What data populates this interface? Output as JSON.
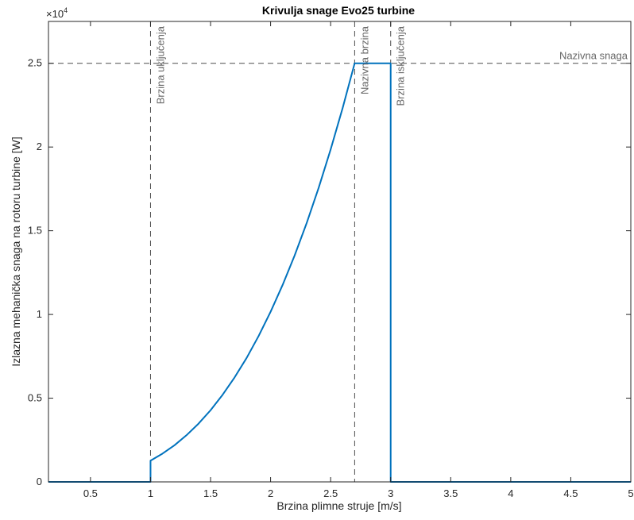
{
  "chart_data": {
    "type": "line",
    "title": "Krivulja snage Evo25 turbine",
    "xlabel": "Brzina plimne struje [m/s]",
    "ylabel": "Izlazna mehanička snaga na rotoru turbine [W]",
    "y_exponent_label": "×10",
    "y_exponent_power": "4",
    "xlim": [
      0.15,
      5
    ],
    "ylim": [
      0,
      27500
    ],
    "x_ticks": [
      0.5,
      1,
      1.5,
      2,
      2.5,
      3,
      3.5,
      4,
      4.5,
      5
    ],
    "x_tick_labels": [
      "0.5",
      "1",
      "1.5",
      "2",
      "2.5",
      "3",
      "3.5",
      "4",
      "4.5",
      "5"
    ],
    "y_ticks": [
      0,
      5000,
      10000,
      15000,
      20000,
      25000
    ],
    "y_tick_labels": [
      "0",
      "0.5",
      "1",
      "1.5",
      "2",
      "2.5"
    ],
    "grid": false,
    "series": [
      {
        "color": "#0072BD",
        "x": [
          0.15,
          1,
          1,
          1.1,
          1.2,
          1.3,
          1.4,
          1.5,
          1.6,
          1.7,
          1.8,
          1.9,
          2.0,
          2.1,
          2.2,
          2.3,
          2.4,
          2.5,
          2.6,
          2.7,
          3.0,
          3.0,
          5.0
        ],
        "y": [
          0,
          0,
          1270,
          1690,
          2190,
          2790,
          3480,
          4280,
          5200,
          6240,
          7400,
          8710,
          10160,
          11760,
          13520,
          15450,
          17560,
          19850,
          22330,
          25000,
          25000,
          0,
          0
        ]
      }
    ],
    "annotations": [
      {
        "text": "Brzina uključenja",
        "x": 1.0
      },
      {
        "text": "Nazivna brzina",
        "x": 2.7
      },
      {
        "text": "Brzina isključenja",
        "x": 3.0
      },
      {
        "text": "Nazivna snaga",
        "y": 25000
      }
    ],
    "reference_color": "#4d4d4d"
  }
}
